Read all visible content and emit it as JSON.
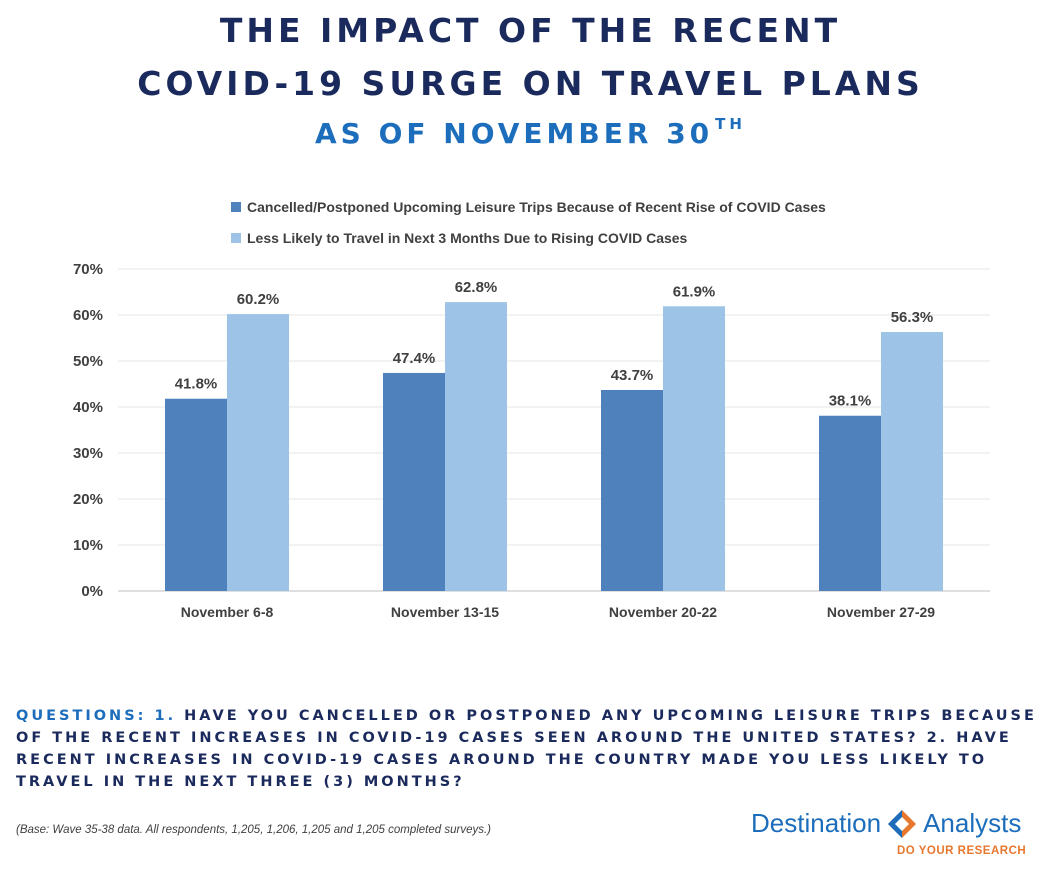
{
  "header": {
    "title_line1": "THE IMPACT OF THE RECENT",
    "title_line2": "COVID-19 SURGE ON TRAVEL PLANS",
    "subtitle": "AS OF NOVEMBER 30",
    "subtitle_sup": "TH"
  },
  "chart_data": {
    "type": "bar",
    "categories": [
      "November 6-8",
      "November 13-15",
      "November 20-22",
      "November 27-29"
    ],
    "series": [
      {
        "name": "Cancelled/Postponed Upcoming Leisure Trips Because of Recent Rise of COVID Cases",
        "values": [
          41.8,
          47.4,
          43.7,
          38.1
        ],
        "labels": [
          "41.8%",
          "47.4%",
          "43.7%",
          "38.1%"
        ],
        "color": "#4f81bd"
      },
      {
        "name": "Less Likely to Travel in Next 3 Months Due to Rising COVID Cases",
        "values": [
          60.2,
          62.8,
          61.9,
          56.3
        ],
        "labels": [
          "60.2%",
          "62.8%",
          "61.9%",
          "56.3%"
        ],
        "color": "#9dc3e6"
      }
    ],
    "ylim": [
      0,
      70
    ],
    "yticks": [
      0,
      10,
      20,
      30,
      40,
      50,
      60,
      70
    ],
    "ytick_labels": [
      "0%",
      "10%",
      "20%",
      "30%",
      "40%",
      "50%",
      "60%",
      "70%"
    ],
    "grid": true,
    "legend_position": "top-left"
  },
  "footer": {
    "questions_label": "QUESTIONS: 1.",
    "questions_text": " HAVE YOU CANCELLED OR POSTPONED ANY UPCOMING LEISURE TRIPS BECAUSE OF THE RECENT INCREASES IN COVID-19 CASES SEEN AROUND THE UNITED STATES? 2. HAVE RECENT INCREASES IN COVID-19 CASES AROUND THE COUNTRY MADE YOU LESS LIKELY TO TRAVEL IN THE NEXT THREE (3) MONTHS?",
    "base_note": "(Base: Wave 35-38 data. All respondents, 1,205, 1,206, 1,205 and 1,205 completed surveys.)"
  },
  "logo": {
    "word1": "Destination",
    "word2": "Analysts",
    "tagline": "DO YOUR RESEARCH",
    "primary_color": "#1c6dbb",
    "accent_color": "#e8772e"
  }
}
